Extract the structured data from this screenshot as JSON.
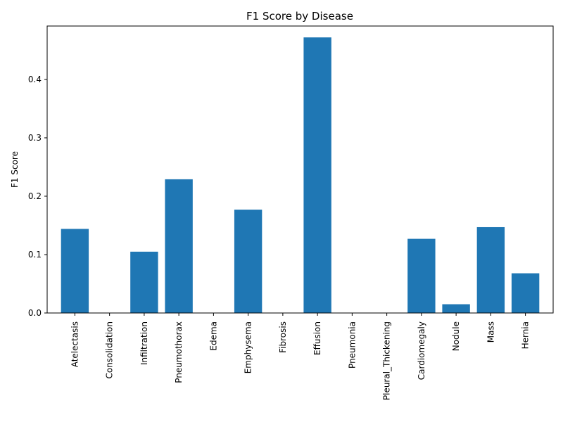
{
  "chart_data": {
    "type": "bar",
    "title": "F1 Score by Disease",
    "xlabel": "",
    "ylabel": "F1 Score",
    "categories": [
      "Atelectasis",
      "Consolidation",
      "Infiltration",
      "Pneumothorax",
      "Edema",
      "Emphysema",
      "Fibrosis",
      "Effusion",
      "Pneumonia",
      "Pleural_Thickening",
      "Cardiomegaly",
      "Nodule",
      "Mass",
      "Hernia"
    ],
    "values": [
      0.144,
      0.0,
      0.105,
      0.229,
      0.0,
      0.177,
      0.0,
      0.472,
      0.0,
      0.0,
      0.127,
      0.015,
      0.147,
      0.068
    ],
    "ylim": [
      0,
      0.4915
    ],
    "yticks": [
      0.0,
      0.1,
      0.2,
      0.3,
      0.4
    ],
    "ytick_labels": [
      "0.0",
      "0.1",
      "0.2",
      "0.3",
      "0.4"
    ],
    "bar_color": "#1f77b4",
    "grid": false,
    "legend": "none"
  }
}
